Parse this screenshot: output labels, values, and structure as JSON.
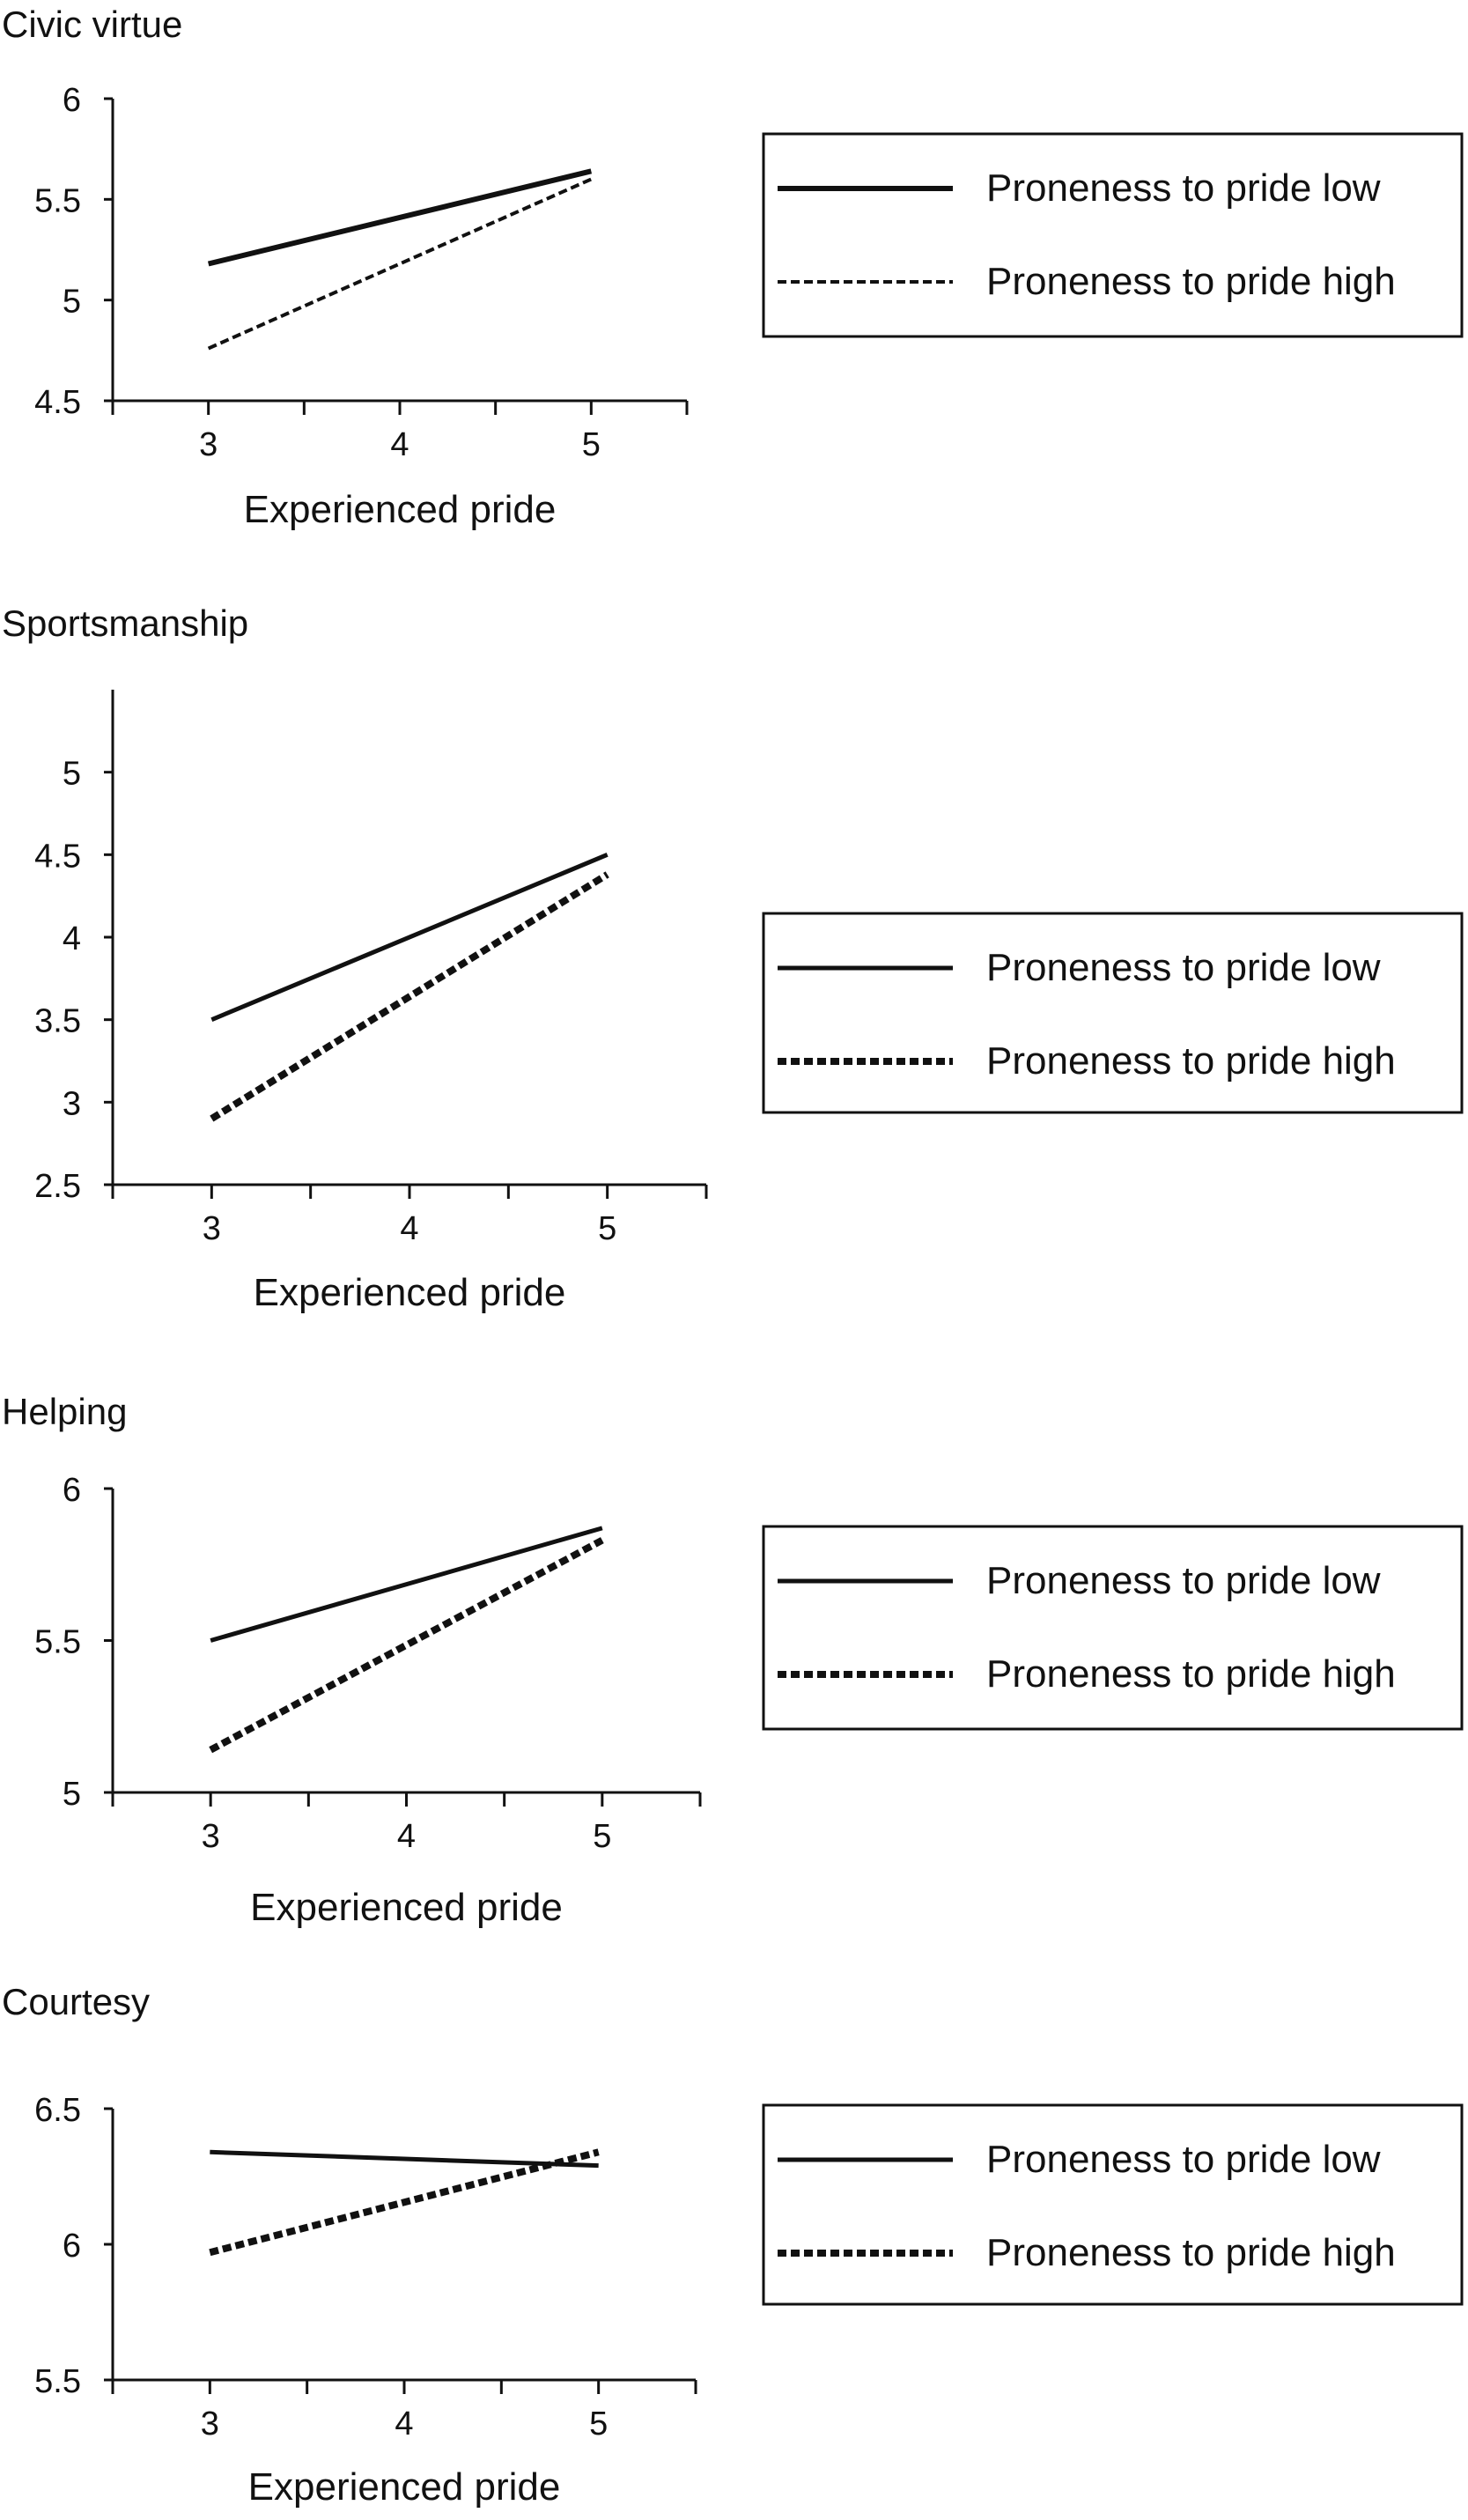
{
  "chart_data": [
    {
      "type": "line",
      "title": "Civic virtue",
      "xlabel": "Experienced pride",
      "ylabel": "",
      "x": [
        3,
        5
      ],
      "xticks": [
        "3",
        "4",
        "5"
      ],
      "xlim": [
        2.5,
        5.5
      ],
      "ylim": [
        4.5,
        6
      ],
      "yticks": [
        "4.5",
        "5",
        "5.5",
        "6"
      ],
      "grid": false,
      "legend_position": "right",
      "series": [
        {
          "name": "Proneness to pride low",
          "style": "solid",
          "values": [
            5.18,
            5.64
          ]
        },
        {
          "name": "Proneness to pride high",
          "style": "dashed",
          "values": [
            4.76,
            5.6
          ]
        }
      ]
    },
    {
      "type": "line",
      "title": "Sportsmanship",
      "xlabel": "Experienced pride",
      "ylabel": "",
      "x": [
        3,
        5
      ],
      "xticks": [
        "3",
        "4",
        "5"
      ],
      "xlim": [
        2.5,
        5.5
      ],
      "ylim": [
        2.5,
        5.5
      ],
      "yticks": [
        "2.5",
        "3",
        "3.5",
        "4",
        "4.5",
        "5"
      ],
      "grid": false,
      "legend_position": "right",
      "series": [
        {
          "name": "Proneness to pride low",
          "style": "solid",
          "values": [
            3.5,
            4.5
          ]
        },
        {
          "name": "Proneness to pride high",
          "style": "dashed",
          "values": [
            2.9,
            4.38
          ]
        }
      ]
    },
    {
      "type": "line",
      "title": "Helping",
      "xlabel": "Experienced pride",
      "ylabel": "",
      "x": [
        3,
        5
      ],
      "xticks": [
        "3",
        "4",
        "5"
      ],
      "xlim": [
        2.5,
        5.5
      ],
      "ylim": [
        5,
        6
      ],
      "yticks": [
        "5",
        "5.5",
        "6"
      ],
      "grid": false,
      "legend_position": "right",
      "series": [
        {
          "name": "Proneness to pride low",
          "style": "solid",
          "values": [
            5.5,
            5.87
          ]
        },
        {
          "name": "Proneness to pride high",
          "style": "dashed",
          "values": [
            5.14,
            5.83
          ]
        }
      ]
    },
    {
      "type": "line",
      "title": "Courtesy",
      "xlabel": "Experienced pride",
      "ylabel": "",
      "x": [
        3,
        5
      ],
      "xticks": [
        "3",
        "4",
        "5"
      ],
      "xlim": [
        2.5,
        5.5
      ],
      "ylim": [
        5.5,
        6.5
      ],
      "yticks": [
        "5.5",
        "6",
        "6.5"
      ],
      "grid": false,
      "legend_position": "right",
      "series": [
        {
          "name": "Proneness to pride low",
          "style": "solid",
          "values": [
            6.34,
            6.29
          ]
        },
        {
          "name": "Proneness to pride high",
          "style": "dashed",
          "values": [
            5.97,
            6.34
          ]
        }
      ]
    }
  ]
}
